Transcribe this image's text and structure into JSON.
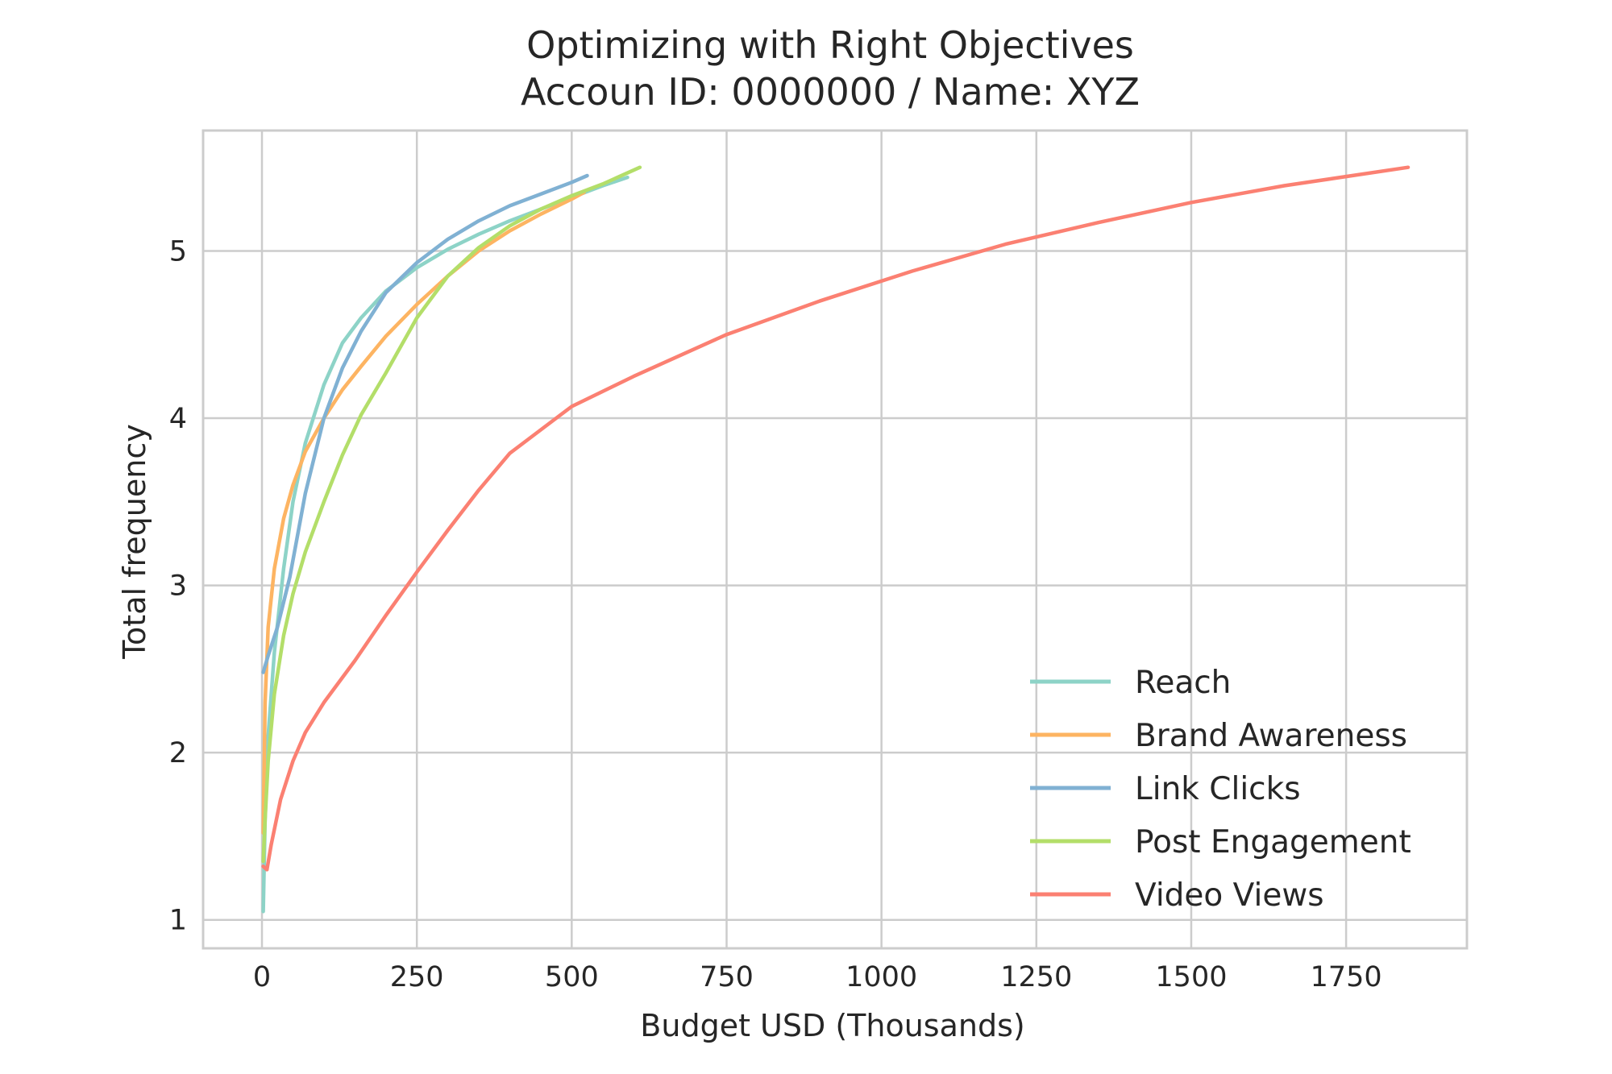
{
  "chart_data": {
    "type": "line",
    "title": "Optimizing with Right Objectives",
    "subtitle": "Accoun ID: 0000000 / Name: XYZ",
    "xlabel": "Budget USD (Thousands)",
    "ylabel": "Total frequency",
    "xlim": [
      -95,
      1945
    ],
    "ylim": [
      0.83,
      5.72
    ],
    "xticks": [
      0,
      250,
      500,
      750,
      1000,
      1250,
      1500,
      1750
    ],
    "yticks": [
      1,
      2,
      3,
      4,
      5
    ],
    "grid": true,
    "legend_position": "lower-right",
    "series": [
      {
        "name": "Reach",
        "color": "#8dd3c7",
        "x": [
          2,
          5,
          10,
          20,
          35,
          50,
          70,
          100,
          130,
          160,
          200,
          250,
          300,
          350,
          400,
          450,
          500,
          550,
          590
        ],
        "y": [
          1.05,
          1.6,
          2.1,
          2.6,
          3.1,
          3.5,
          3.85,
          4.2,
          4.45,
          4.6,
          4.76,
          4.9,
          5.01,
          5.1,
          5.18,
          5.25,
          5.32,
          5.39,
          5.44
        ]
      },
      {
        "name": "Brand Awareness",
        "color": "#fdb462",
        "x": [
          2,
          5,
          10,
          20,
          35,
          50,
          70,
          100,
          130,
          160,
          200,
          250,
          300,
          350,
          400,
          450,
          500,
          520
        ],
        "y": [
          1.52,
          2.3,
          2.75,
          3.1,
          3.4,
          3.6,
          3.8,
          4.0,
          4.17,
          4.31,
          4.49,
          4.68,
          4.85,
          5.0,
          5.12,
          5.22,
          5.31,
          5.35
        ]
      },
      {
        "name": "Link Clicks",
        "color": "#80b1d3",
        "x": [
          2,
          10,
          25,
          45,
          70,
          100,
          130,
          160,
          200,
          250,
          300,
          350,
          400,
          450,
          500,
          525
        ],
        "y": [
          2.48,
          2.58,
          2.75,
          3.05,
          3.55,
          4.0,
          4.3,
          4.52,
          4.75,
          4.93,
          5.07,
          5.18,
          5.27,
          5.34,
          5.41,
          5.45
        ]
      },
      {
        "name": "Post Engagement",
        "color": "#b3de69",
        "x": [
          2,
          5,
          10,
          20,
          35,
          50,
          70,
          100,
          130,
          160,
          200,
          250,
          300,
          350,
          400,
          450,
          500,
          550,
          610
        ],
        "y": [
          1.35,
          1.6,
          1.95,
          2.35,
          2.7,
          2.95,
          3.2,
          3.5,
          3.78,
          4.02,
          4.27,
          4.6,
          4.85,
          5.02,
          5.15,
          5.25,
          5.33,
          5.4,
          5.5
        ]
      },
      {
        "name": "Video Views",
        "color": "#fb8072",
        "x": [
          2,
          8,
          15,
          30,
          50,
          70,
          100,
          150,
          200,
          250,
          300,
          350,
          400,
          450,
          500,
          600,
          750,
          900,
          1050,
          1200,
          1350,
          1500,
          1650,
          1850
        ],
        "y": [
          1.32,
          1.3,
          1.45,
          1.72,
          1.95,
          2.12,
          2.3,
          2.55,
          2.82,
          3.08,
          3.33,
          3.57,
          3.79,
          3.93,
          4.07,
          4.25,
          4.5,
          4.7,
          4.88,
          5.04,
          5.17,
          5.29,
          5.39,
          5.5
        ]
      }
    ]
  }
}
